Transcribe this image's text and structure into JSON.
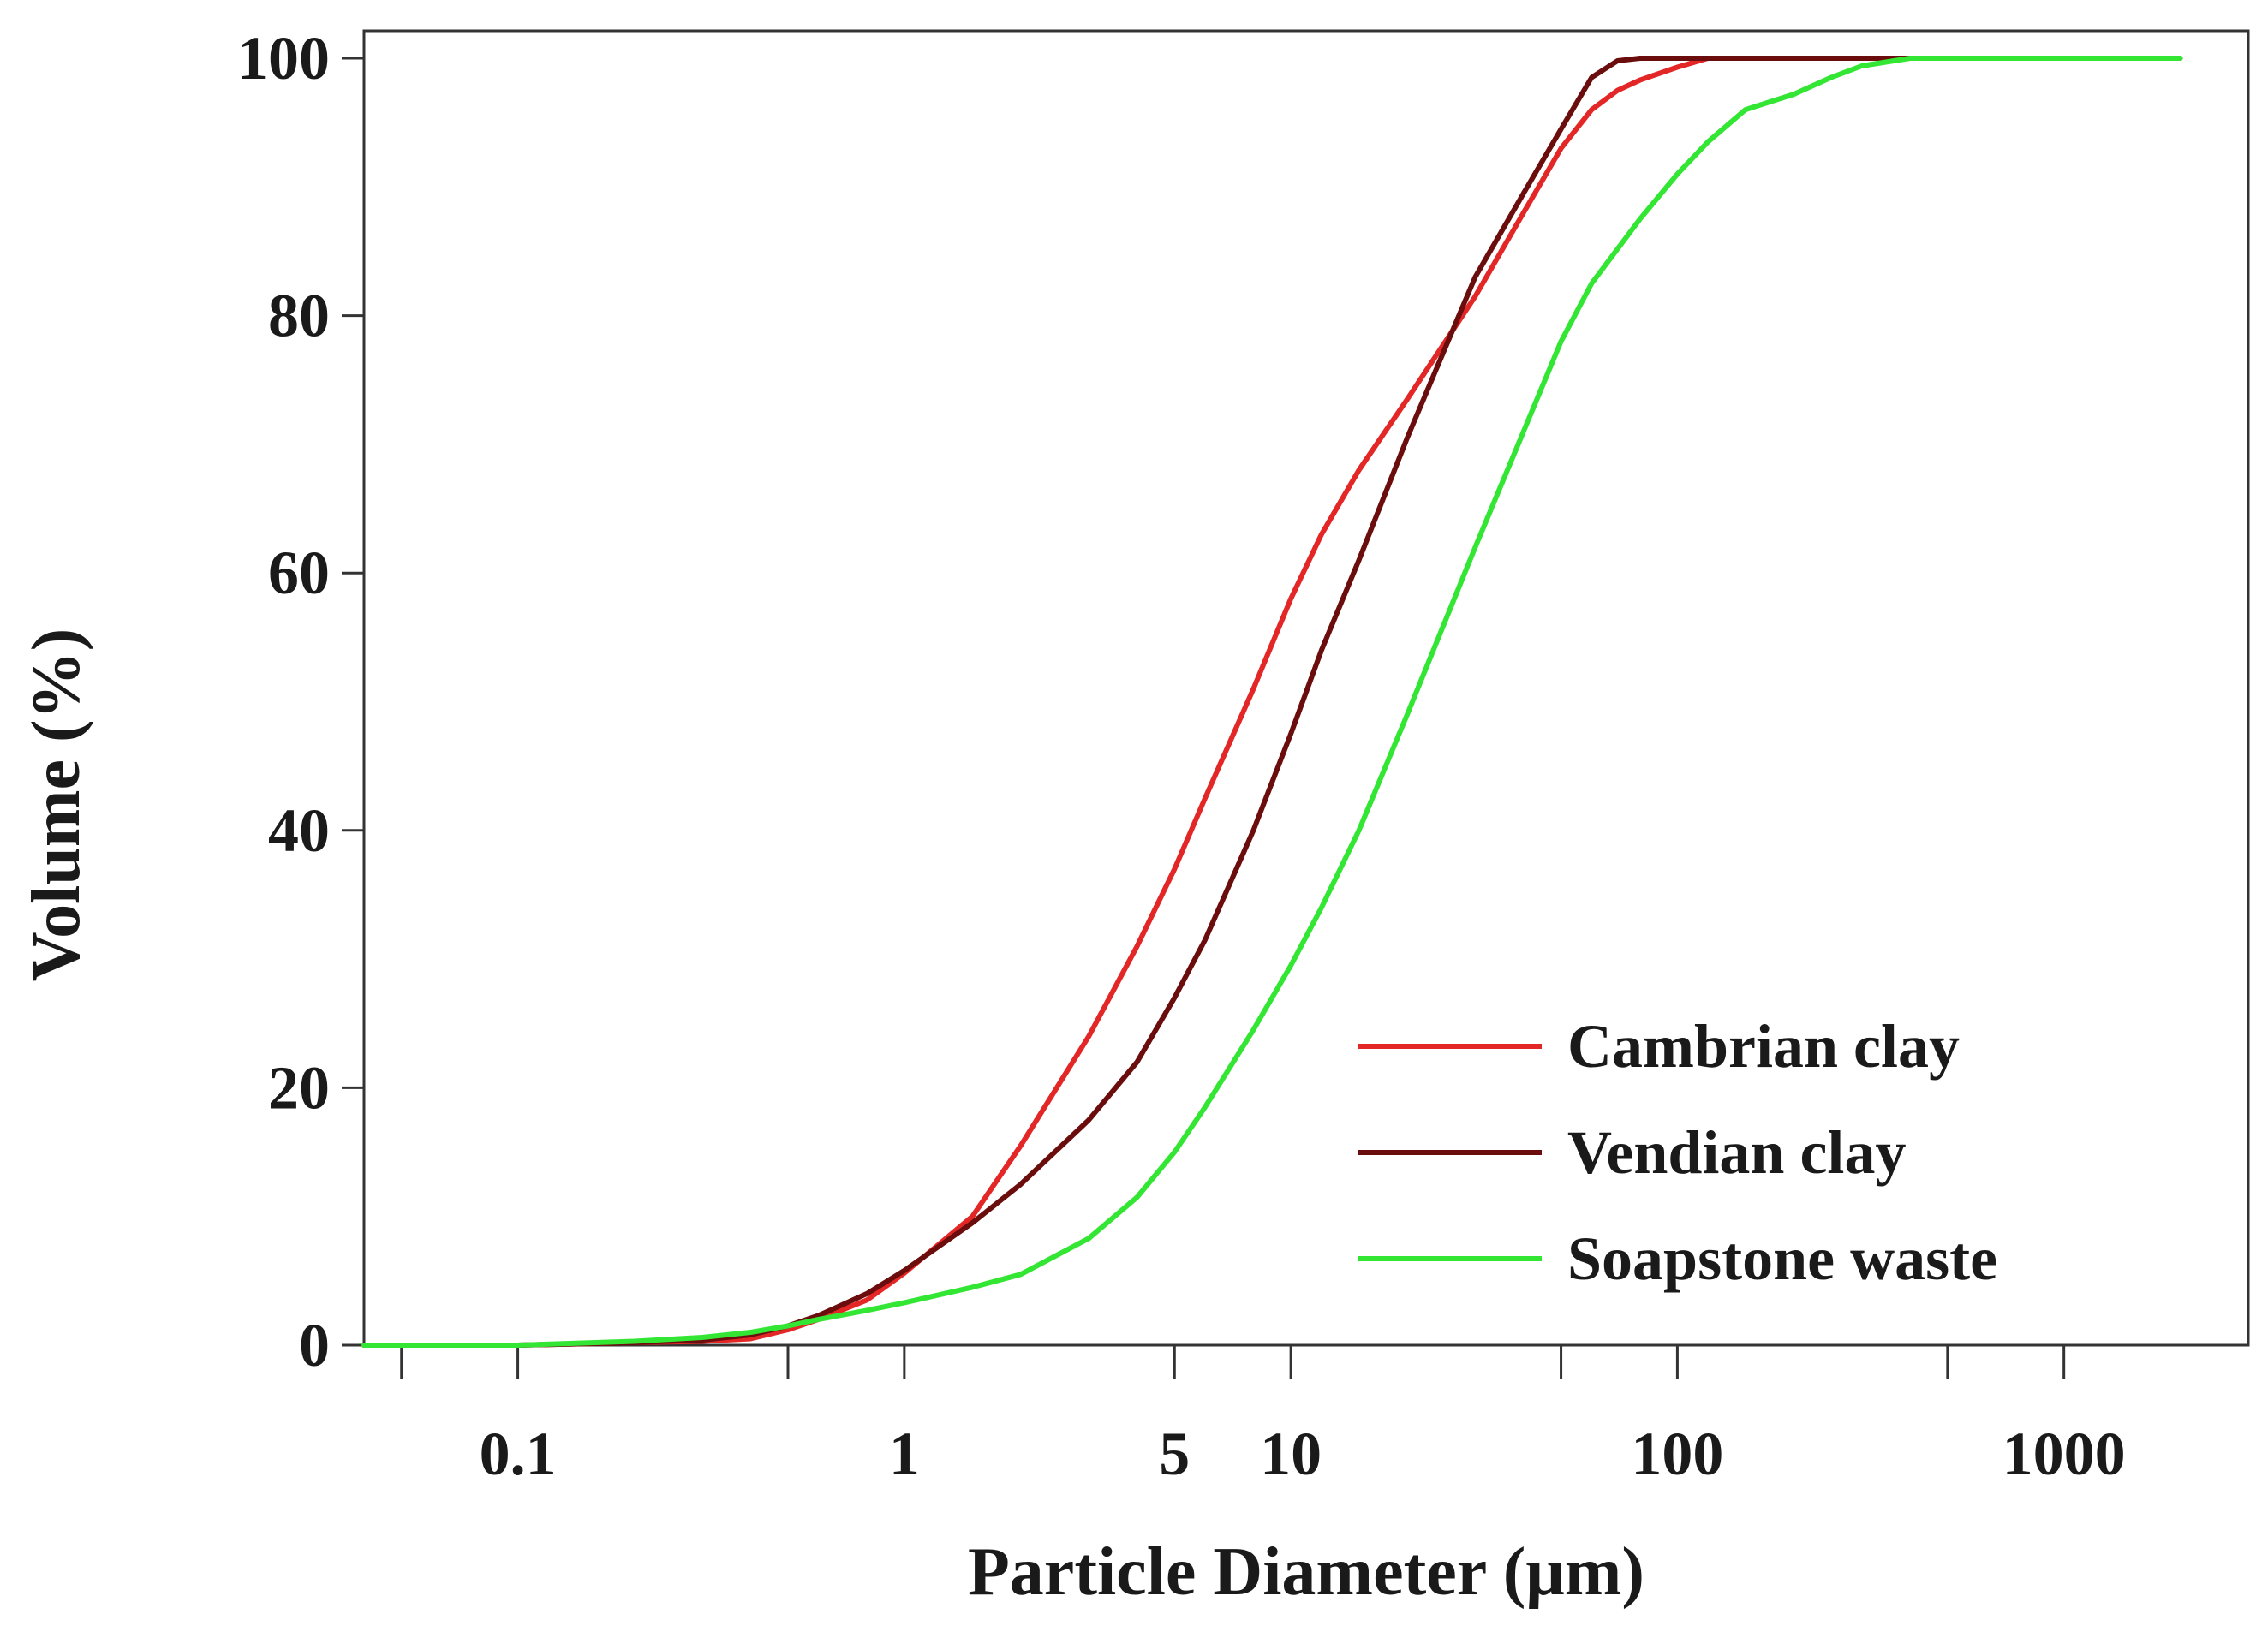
{
  "chart_data": {
    "type": "line",
    "xlabel": "Particle Diameter (μm)",
    "ylabel": "Volume (%)",
    "x_scale": "log",
    "xlim": [
      0.04,
      3000
    ],
    "ylim": [
      0,
      100
    ],
    "grid": false,
    "legend_position": "bottom-right",
    "x_ticks": [
      {
        "value": 0.1,
        "label": "0.1"
      },
      {
        "value": 1,
        "label": "1"
      },
      {
        "value": 5,
        "label": "5"
      },
      {
        "value": 10,
        "label": "10"
      },
      {
        "value": 100,
        "label": "100"
      },
      {
        "value": 1000,
        "label": "1000"
      }
    ],
    "x_minor_ticks": [
      0.05,
      0.5,
      50,
      500
    ],
    "y_ticks": [
      {
        "value": 0,
        "label": "0"
      },
      {
        "value": 20,
        "label": "20"
      },
      {
        "value": 40,
        "label": "40"
      },
      {
        "value": 60,
        "label": "60"
      },
      {
        "value": 80,
        "label": "80"
      },
      {
        "value": 100,
        "label": "100"
      }
    ],
    "series": [
      {
        "name": "Cambrian clay",
        "color": "#e32626",
        "points": [
          [
            0.04,
            0
          ],
          [
            0.1,
            0
          ],
          [
            0.2,
            0.2
          ],
          [
            0.3,
            0.3
          ],
          [
            0.4,
            0.5
          ],
          [
            0.5,
            1.2
          ],
          [
            0.6,
            2
          ],
          [
            0.8,
            3.5
          ],
          [
            1,
            5.6
          ],
          [
            1.5,
            10
          ],
          [
            2,
            15.5
          ],
          [
            3,
            24
          ],
          [
            4,
            31
          ],
          [
            5,
            37
          ],
          [
            6,
            42.5
          ],
          [
            8,
            51
          ],
          [
            10,
            58
          ],
          [
            12,
            63
          ],
          [
            15,
            68
          ],
          [
            20,
            73.5
          ],
          [
            30,
            81.5
          ],
          [
            40,
            88
          ],
          [
            50,
            93
          ],
          [
            60,
            96
          ],
          [
            70,
            97.5
          ],
          [
            80,
            98.3
          ],
          [
            100,
            99.3
          ],
          [
            120,
            100
          ],
          [
            200,
            100
          ],
          [
            2000,
            100
          ]
        ]
      },
      {
        "name": "Vendian clay",
        "color": "#6b0d0d",
        "points": [
          [
            0.04,
            0
          ],
          [
            0.1,
            0
          ],
          [
            0.2,
            0.2
          ],
          [
            0.3,
            0.4
          ],
          [
            0.4,
            0.8
          ],
          [
            0.5,
            1.5
          ],
          [
            0.6,
            2.3
          ],
          [
            0.8,
            4
          ],
          [
            1,
            5.8
          ],
          [
            1.5,
            9.5
          ],
          [
            2,
            12.5
          ],
          [
            3,
            17.5
          ],
          [
            4,
            22
          ],
          [
            5,
            27
          ],
          [
            6,
            31.5
          ],
          [
            8,
            40
          ],
          [
            10,
            47.5
          ],
          [
            12,
            54
          ],
          [
            15,
            61
          ],
          [
            20,
            70.5
          ],
          [
            30,
            83
          ],
          [
            40,
            89.5
          ],
          [
            50,
            94.5
          ],
          [
            60,
            98.5
          ],
          [
            70,
            99.8
          ],
          [
            80,
            100
          ],
          [
            2000,
            100
          ]
        ]
      },
      {
        "name": "Soapstone waste",
        "color": "#33e633",
        "points": [
          [
            0.04,
            0
          ],
          [
            0.1,
            0
          ],
          [
            0.2,
            0.3
          ],
          [
            0.3,
            0.6
          ],
          [
            0.4,
            1
          ],
          [
            0.5,
            1.5
          ],
          [
            0.6,
            2
          ],
          [
            0.8,
            2.7
          ],
          [
            1,
            3.3
          ],
          [
            1.5,
            4.5
          ],
          [
            2,
            5.5
          ],
          [
            3,
            8.3
          ],
          [
            4,
            11.5
          ],
          [
            5,
            15
          ],
          [
            6,
            18.5
          ],
          [
            8,
            24.5
          ],
          [
            10,
            29.5
          ],
          [
            12,
            34
          ],
          [
            15,
            40
          ],
          [
            20,
            49
          ],
          [
            30,
            62
          ],
          [
            40,
            71
          ],
          [
            50,
            78
          ],
          [
            60,
            82.5
          ],
          [
            80,
            87.5
          ],
          [
            100,
            91
          ],
          [
            120,
            93.5
          ],
          [
            150,
            96
          ],
          [
            200,
            97.2
          ],
          [
            250,
            98.5
          ],
          [
            300,
            99.4
          ],
          [
            400,
            100
          ],
          [
            2000,
            100
          ]
        ]
      }
    ]
  }
}
